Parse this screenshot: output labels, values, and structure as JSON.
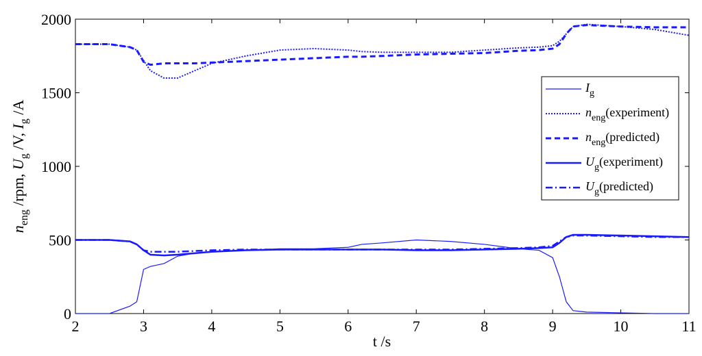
{
  "chart_data": {
    "type": "line",
    "xlabel": "t /s",
    "ylabel_parts": [
      {
        "text": "n"
      },
      {
        "sub": "eng"
      },
      {
        "text": " /rpm, "
      },
      {
        "text": "U"
      },
      {
        "sub": "g"
      },
      {
        "text": " /V, "
      },
      {
        "text": "I"
      },
      {
        "sub": "g"
      },
      {
        "text": " /A"
      }
    ],
    "x": [
      2,
      2.5,
      2.8,
      2.9,
      3,
      3.1,
      3.3,
      3.5,
      3.75,
      4,
      4.5,
      5,
      5.5,
      6,
      6.2,
      6.5,
      7,
      7.5,
      8,
      8.5,
      8.8,
      9,
      9.1,
      9.2,
      9.3,
      9.5,
      10,
      10.5,
      11
    ],
    "xlim": [
      2,
      11
    ],
    "xticks": [
      2,
      3,
      4,
      5,
      6,
      7,
      8,
      9,
      10,
      11
    ],
    "ylim": [
      0,
      2000
    ],
    "yticks": [
      0,
      500,
      1000,
      1500,
      2000
    ],
    "legend": "upper right",
    "series": [
      {
        "symbol": "I",
        "subscript": "g",
        "color": "#1a1aff",
        "linestyle": "solid",
        "width": 1.2,
        "values": [
          0,
          0,
          50,
          80,
          300,
          320,
          340,
          390,
          410,
          420,
          430,
          440,
          440,
          450,
          470,
          480,
          500,
          490,
          470,
          440,
          430,
          380,
          250,
          80,
          20,
          10,
          5,
          0,
          0
        ]
      },
      {
        "symbol": "n",
        "subscript": "eng",
        "name": "(experiment)",
        "color": "#1a1aff",
        "linestyle": "dotted",
        "width": 2,
        "values": [
          1830,
          1830,
          1810,
          1790,
          1720,
          1650,
          1600,
          1600,
          1650,
          1700,
          1750,
          1790,
          1800,
          1790,
          1780,
          1775,
          1775,
          1775,
          1790,
          1805,
          1810,
          1820,
          1850,
          1900,
          1950,
          1965,
          1950,
          1930,
          1890
        ]
      },
      {
        "symbol": "n",
        "subscript": "eng",
        "name": "(predicted)",
        "color": "#1a1aff",
        "linestyle": "dashed",
        "width": 3,
        "values": [
          1830,
          1830,
          1810,
          1790,
          1710,
          1690,
          1700,
          1700,
          1700,
          1705,
          1715,
          1725,
          1735,
          1745,
          1745,
          1750,
          1760,
          1765,
          1770,
          1785,
          1790,
          1800,
          1830,
          1900,
          1950,
          1960,
          1950,
          1945,
          1945
        ]
      },
      {
        "symbol": "U",
        "subscript": "g",
        "name": "(experiment)",
        "color": "#1a1aff",
        "linestyle": "solid",
        "width": 2.5,
        "values": [
          500,
          500,
          490,
          470,
          430,
          400,
          395,
          400,
          410,
          420,
          430,
          435,
          435,
          435,
          435,
          435,
          430,
          430,
          435,
          440,
          445,
          450,
          480,
          520,
          535,
          535,
          530,
          525,
          520
        ]
      },
      {
        "symbol": "U",
        "subscript": "g",
        "name": "(predicted)",
        "color": "#1a1aff",
        "linestyle": "dashdot",
        "width": 2.5,
        "values": [
          500,
          500,
          490,
          470,
          430,
          420,
          420,
          420,
          425,
          430,
          435,
          435,
          435,
          435,
          435,
          435,
          435,
          435,
          440,
          445,
          450,
          460,
          490,
          520,
          530,
          530,
          525,
          520,
          520
        ]
      }
    ]
  }
}
